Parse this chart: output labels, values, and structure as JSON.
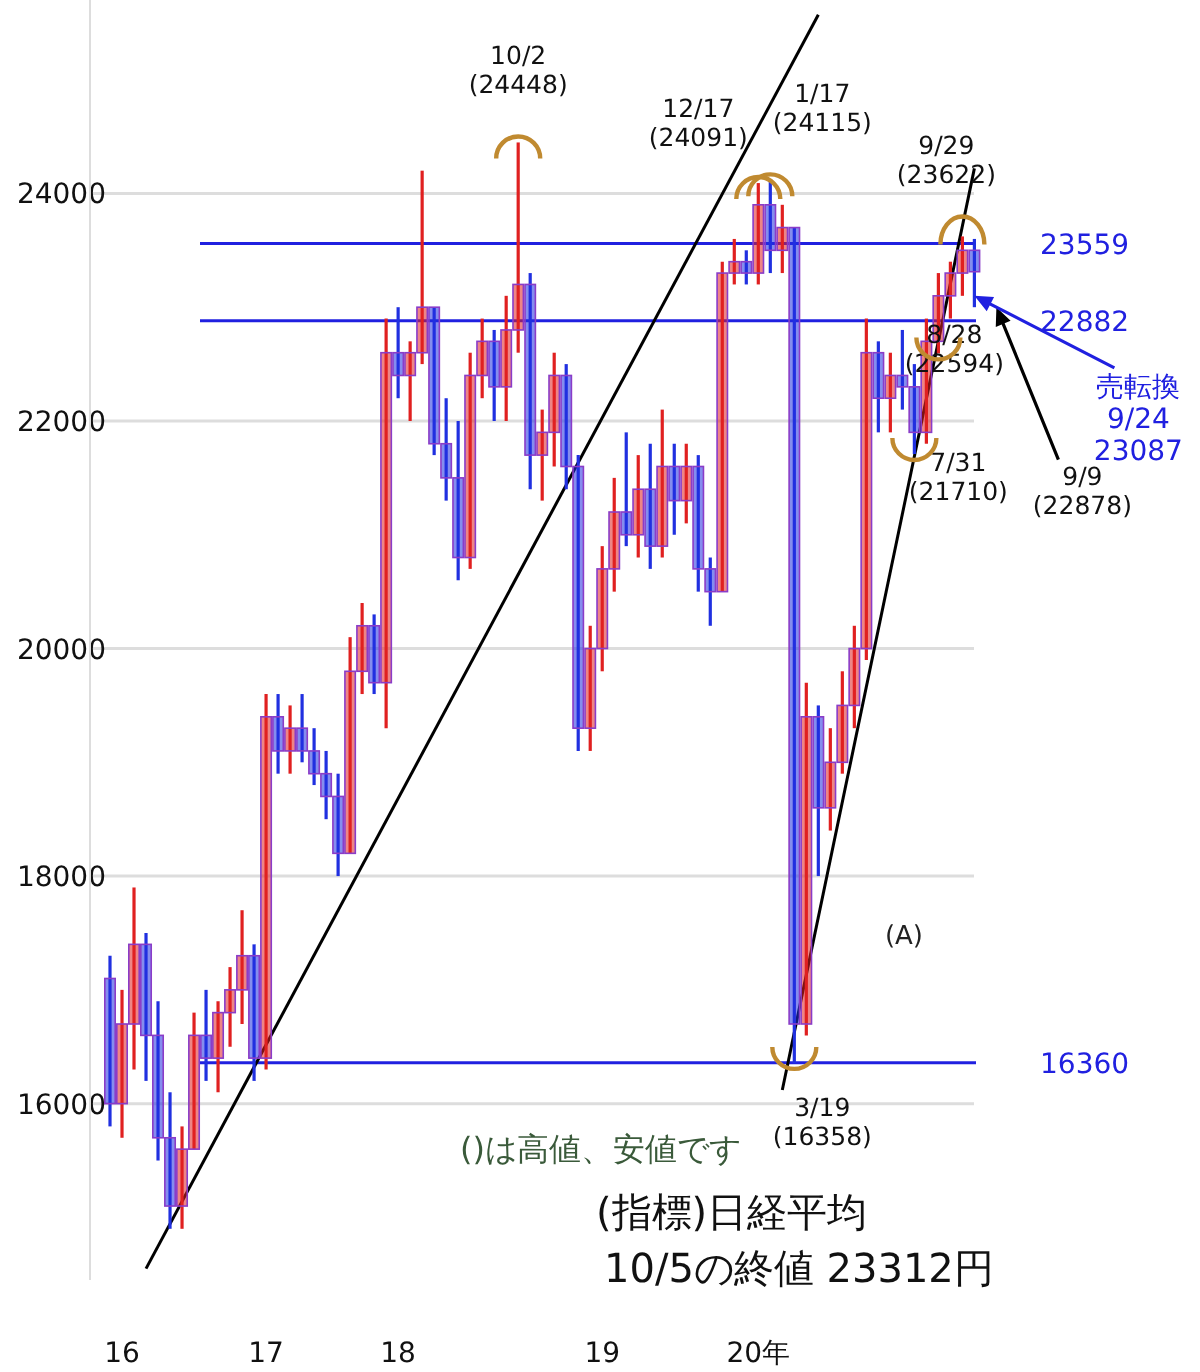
{
  "chart_data": {
    "type": "candlestick",
    "categories": [
      null,
      "16",
      null,
      null,
      null,
      null,
      null,
      null,
      null,
      null,
      null,
      null,
      null,
      "17",
      null,
      null,
      null,
      null,
      null,
      null,
      null,
      null,
      null,
      null,
      "18",
      null,
      null,
      null,
      null,
      null,
      null,
      null,
      null,
      null,
      null,
      null,
      null,
      null,
      null,
      null,
      null,
      "19",
      null,
      null,
      null,
      null,
      null,
      null,
      null,
      null,
      null,
      null,
      null,
      null,
      "20年",
      null,
      null,
      null,
      null,
      null,
      null,
      null,
      null,
      null,
      null,
      null,
      null,
      null,
      null,
      null,
      null,
      null,
      null
    ],
    "ohlc": [
      [
        17100,
        17300,
        15800,
        16000
      ],
      [
        16000,
        17000,
        15700,
        16700
      ],
      [
        16700,
        17900,
        16300,
        17400
      ],
      [
        17400,
        17500,
        16200,
        16600
      ],
      [
        16600,
        16900,
        15500,
        15700
      ],
      [
        15700,
        16100,
        14900,
        15100
      ],
      [
        15100,
        15800,
        14900,
        15600
      ],
      [
        15600,
        16800,
        15600,
        16600
      ],
      [
        16600,
        17000,
        16200,
        16400
      ],
      [
        16400,
        16900,
        16100,
        16800
      ],
      [
        16800,
        17200,
        16500,
        17000
      ],
      [
        17000,
        17700,
        16700,
        17300
      ],
      [
        17300,
        17400,
        16200,
        16400
      ],
      [
        16400,
        19600,
        16300,
        19400
      ],
      [
        19400,
        19600,
        18900,
        19100
      ],
      [
        19100,
        19500,
        18900,
        19300
      ],
      [
        19300,
        19600,
        19000,
        19100
      ],
      [
        19100,
        19300,
        18800,
        18900
      ],
      [
        18900,
        19100,
        18500,
        18700
      ],
      [
        18700,
        18900,
        18000,
        18200
      ],
      [
        18200,
        20100,
        18200,
        19800
      ],
      [
        19800,
        20400,
        19600,
        20200
      ],
      [
        20200,
        20300,
        19600,
        19700
      ],
      [
        19700,
        22900,
        19300,
        22600
      ],
      [
        22600,
        23000,
        22200,
        22400
      ],
      [
        22400,
        22700,
        22000,
        22600
      ],
      [
        22600,
        24200,
        22500,
        23000
      ],
      [
        23000,
        23000,
        21700,
        21800
      ],
      [
        21800,
        22200,
        21300,
        21500
      ],
      [
        21500,
        22000,
        20600,
        20800
      ],
      [
        20800,
        22600,
        20700,
        22400
      ],
      [
        22400,
        22900,
        22200,
        22700
      ],
      [
        22700,
        22800,
        22000,
        22300
      ],
      [
        22300,
        23100,
        22000,
        22800
      ],
      [
        22800,
        24448,
        22600,
        23200
      ],
      [
        23200,
        23300,
        21400,
        21700
      ],
      [
        21700,
        22100,
        21300,
        21900
      ],
      [
        21900,
        22600,
        21600,
        22400
      ],
      [
        22400,
        22500,
        21400,
        21600
      ],
      [
        21600,
        21700,
        19100,
        19300
      ],
      [
        19300,
        20200,
        19100,
        20000
      ],
      [
        20000,
        20900,
        19800,
        20700
      ],
      [
        20700,
        21500,
        20500,
        21200
      ],
      [
        21200,
        21900,
        20900,
        21000
      ],
      [
        21000,
        21700,
        20800,
        21400
      ],
      [
        21400,
        21800,
        20700,
        20900
      ],
      [
        20900,
        22100,
        20800,
        21600
      ],
      [
        21600,
        21800,
        21000,
        21300
      ],
      [
        21300,
        21800,
        21100,
        21600
      ],
      [
        21600,
        21700,
        20500,
        20700
      ],
      [
        20700,
        20800,
        20200,
        20500
      ],
      [
        20500,
        23400,
        20500,
        23300
      ],
      [
        23300,
        23600,
        23200,
        23400
      ],
      [
        23400,
        23500,
        23200,
        23300
      ],
      [
        23300,
        24091,
        23200,
        23900
      ],
      [
        23900,
        24115,
        23300,
        23500
      ],
      [
        23500,
        23900,
        23300,
        23700
      ],
      [
        23700,
        23700,
        16358,
        16700
      ],
      [
        16700,
        19700,
        16600,
        19400
      ],
      [
        19400,
        19500,
        18000,
        18600
      ],
      [
        18600,
        19300,
        18400,
        19000
      ],
      [
        19000,
        19800,
        18900,
        19500
      ],
      [
        19500,
        20200,
        19300,
        20000
      ],
      [
        20000,
        22900,
        19900,
        22600
      ],
      [
        22600,
        22700,
        21900,
        22200
      ],
      [
        22200,
        22600,
        21900,
        22400
      ],
      [
        22400,
        22800,
        22100,
        22300
      ],
      [
        22300,
        22500,
        21710,
        21900
      ],
      [
        21900,
        22900,
        21800,
        22700
      ],
      [
        22700,
        23300,
        22594,
        23100
      ],
      [
        23100,
        23400,
        22900,
        23300
      ],
      [
        23300,
        23622,
        23100,
        23500
      ],
      [
        23500,
        23600,
        23000,
        23312
      ]
    ],
    "colors": [
      "#2030e0",
      "#e02020",
      "#e02020",
      "#2030e0",
      "#2030e0",
      "#2030e0",
      "#e02020",
      "#e02020",
      "#2030e0",
      "#e02020",
      "#e02020",
      "#e02020",
      "#2030e0",
      "#e02020",
      "#2030e0",
      "#e02020",
      "#2030e0",
      "#2030e0",
      "#2030e0",
      "#2030e0",
      "#e02020",
      "#e02020",
      "#2030e0",
      "#e02020",
      "#2030e0",
      "#e02020",
      "#e02020",
      "#2030e0",
      "#2030e0",
      "#2030e0",
      "#e02020",
      "#e02020",
      "#2030e0",
      "#e02020",
      "#e02020",
      "#2030e0",
      "#e02020",
      "#e02020",
      "#2030e0",
      "#2030e0",
      "#e02020",
      "#e02020",
      "#e02020",
      "#2030e0",
      "#e02020",
      "#2030e0",
      "#e02020",
      "#2030e0",
      "#e02020",
      "#2030e0",
      "#2030e0",
      "#e02020",
      "#e02020",
      "#2030e0",
      "#e02020",
      "#2030e0",
      "#e02020",
      "#2030e0",
      "#e02020",
      "#2030e0",
      "#e02020",
      "#e02020",
      "#e02020",
      "#e02020",
      "#2030e0",
      "#e02020",
      "#2030e0",
      "#2030e0",
      "#e02020",
      "#e02020",
      "#e02020",
      "#e02020",
      "#2030e0"
    ],
    "series": [
      {
        "type": "line",
        "color": "#000000",
        "values": [
          null,
          null,
          null,
          14550,
          null,
          null,
          null,
          null,
          null,
          null,
          null,
          null,
          null,
          null,
          null,
          null,
          null,
          null,
          null,
          null,
          null,
          null,
          null,
          null,
          null,
          null,
          null,
          null,
          null,
          null,
          null,
          null,
          null,
          null,
          null,
          null,
          null,
          null,
          null,
          null,
          null,
          null,
          null,
          null,
          null,
          null,
          null,
          null,
          null,
          null,
          null,
          null,
          null,
          null,
          null,
          null,
          null,
          null,
          null,
          25570,
          null,
          null,
          null,
          null,
          null,
          null,
          null,
          null,
          null,
          null,
          null,
          null,
          null
        ]
      },
      {
        "type": "line",
        "color": "#000000",
        "values": [
          null,
          null,
          null,
          null,
          null,
          null,
          null,
          null,
          null,
          null,
          null,
          null,
          null,
          null,
          null,
          null,
          null,
          null,
          null,
          null,
          null,
          null,
          null,
          null,
          null,
          null,
          null,
          null,
          null,
          null,
          null,
          null,
          null,
          null,
          null,
          null,
          null,
          null,
          null,
          null,
          null,
          null,
          null,
          null,
          null,
          null,
          null,
          null,
          null,
          null,
          null,
          null,
          null,
          null,
          null,
          null,
          16120,
          null,
          null,
          null,
          null,
          null,
          null,
          null,
          null,
          null,
          null,
          null,
          null,
          null,
          null,
          null,
          24220
        ]
      }
    ],
    "ylim": [
      14450,
      25700
    ],
    "yticks": [
      16000,
      18000,
      20000,
      22000,
      24000
    ],
    "grid": "y",
    "ref_lines": [
      {
        "axis": "y",
        "value": 23559,
        "label": "23559",
        "color": "#2020e0"
      },
      {
        "axis": "y",
        "value": 22882,
        "label": "22882",
        "color": "#2020e0"
      },
      {
        "axis": "y",
        "value": 16360,
        "label": "16360",
        "color": "#2020e0"
      }
    ],
    "annotations": [
      "10/2\n(24448)",
      "12/17\n(24091)",
      "1/17\n(24115)",
      "9/29\n(23622)",
      "8/28\n(22594)",
      "7/31\n(21710)",
      "3/19\n(16358)",
      "9/9\n(22878)",
      "売転換\n9/24\n23087",
      "(A)",
      "()は高値、安値です",
      "(指標)日経平均",
      "10/5の終値 23312円"
    ]
  }
}
